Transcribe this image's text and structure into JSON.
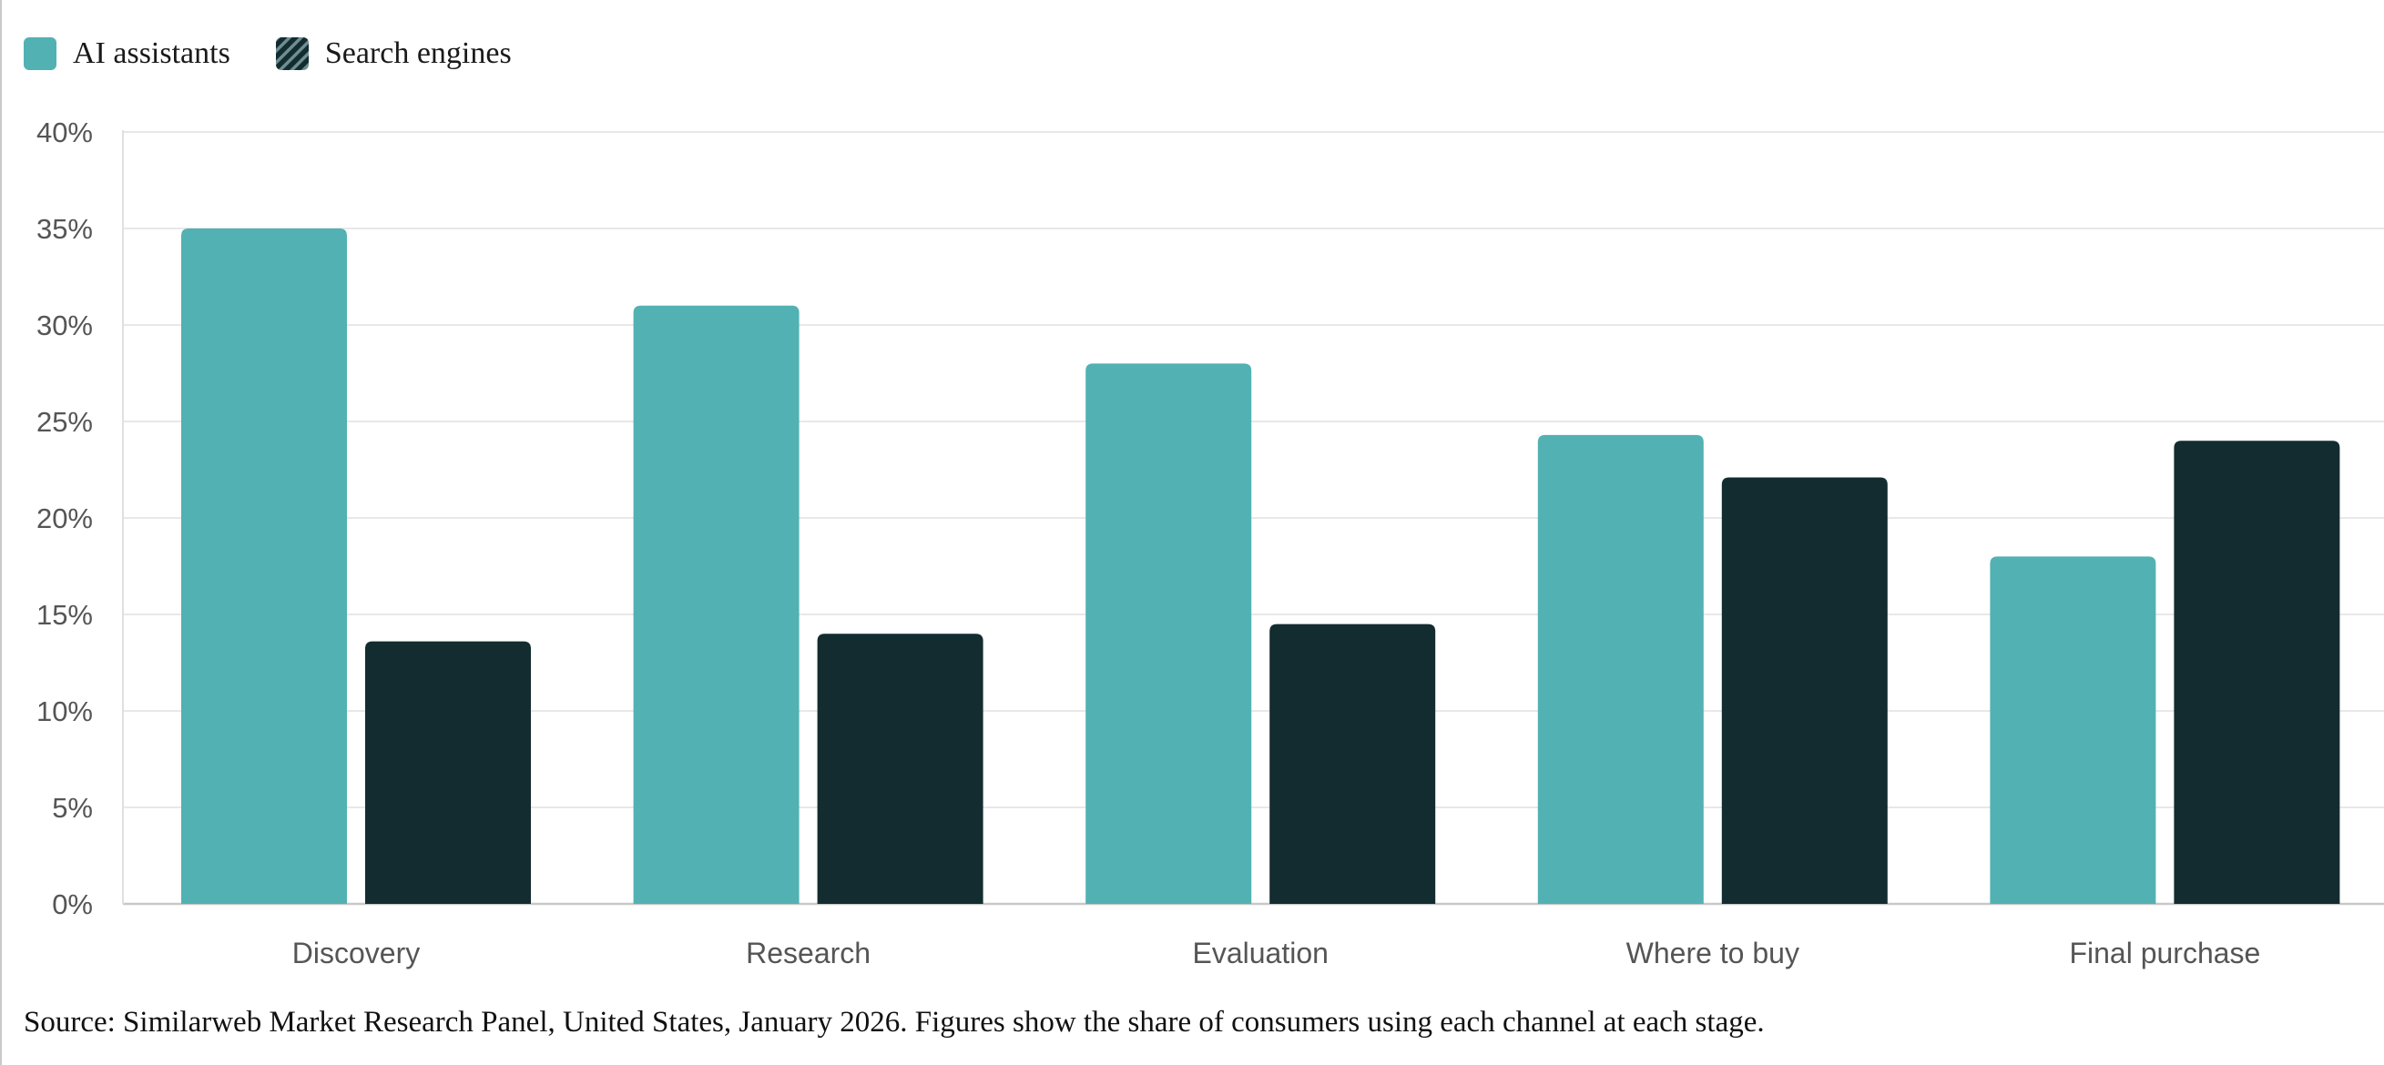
{
  "legend": {
    "items": [
      {
        "label": "AI assistants",
        "color": "#52b1b3",
        "pattern": "solid"
      },
      {
        "label": "Search engines",
        "color": "#132c30",
        "pattern": "diagonal-stripes"
      }
    ]
  },
  "chart_data": {
    "type": "bar",
    "categories": [
      "Discovery",
      "Research",
      "Evaluation",
      "Where to buy",
      "Final purchase"
    ],
    "series": [
      {
        "name": "AI assistants",
        "color": "#52b1b3",
        "values": [
          35,
          31,
          28,
          24.3,
          18
        ]
      },
      {
        "name": "Search engines",
        "color": "#132c30",
        "values": [
          13.6,
          14,
          14.5,
          22.1,
          24
        ]
      }
    ],
    "y_ticks": [
      "0%",
      "5%",
      "10%",
      "15%",
      "20%",
      "25%",
      "30%",
      "35%",
      "40%"
    ],
    "ylim": [
      0,
      40
    ],
    "y_format": "percent",
    "grid": true,
    "legend_position": "top-left"
  },
  "source_note": "Source: Similarweb Market Research Panel, United States, January 2026. Figures show the share of consumers using each channel at each stage."
}
